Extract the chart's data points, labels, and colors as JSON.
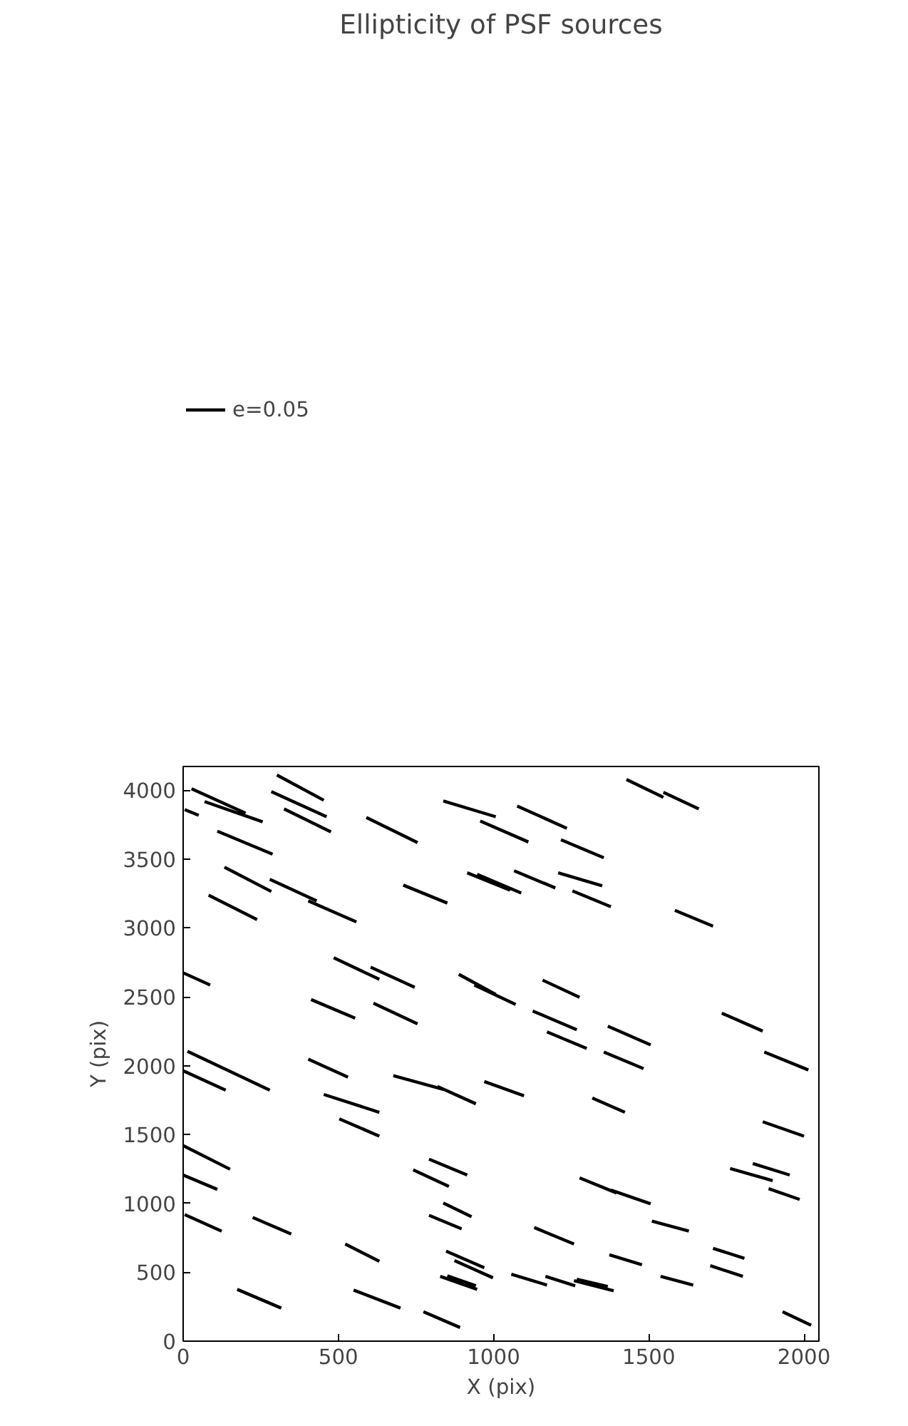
{
  "chart_data": {
    "type": "line",
    "title": "Ellipticity of PSF sources",
    "xlabel": "X (pix)",
    "ylabel": "Y (pix)",
    "xlim": [
      0,
      2048
    ],
    "ylim": [
      0,
      4172
    ],
    "xticks": [
      0,
      500,
      1000,
      1500,
      2000
    ],
    "yticks": [
      0,
      500,
      1000,
      1500,
      2000,
      2500,
      3000,
      3500,
      4000
    ],
    "grid": false,
    "legend": "top left",
    "line_style": "solid",
    "series": [
      {
        "name": "e=0.05",
        "color": "#000000",
        "x": [
          27,
          201,
          null,
          69,
          256,
          null,
          5,
          50,
          null,
          302,
          453,
          null,
          284,
          462,
          null,
          325,
          476,
          null,
          110,
          288,
          null,
          590,
          755,
          null,
          838,
          1007,
          null,
          957,
          1112,
          null,
          133,
          284,
          null,
          279,
          430,
          null,
          82,
          238,
          null,
          403,
          558,
          null,
          709,
          851,
          null,
          915,
          1053,
          null,
          947,
          1089,
          null,
          1428,
          1547,
          null,
          1547,
          1661,
          null,
          1076,
          1236,
          null,
          1217,
          1355,
          null,
          1066,
          1199,
          null,
          1208,
          1350,
          null,
          1254,
          1378,
          null,
          1584,
          1707,
          null,
          0,
          87,
          null,
          485,
          632,
          null,
          604,
          746,
          null,
          888,
          1007,
          null,
          938,
          1071,
          null,
          412,
          554,
          null,
          613,
          755,
          null,
          14,
          279,
          null,
          0,
          137,
          null,
          403,
          531,
          null,
          677,
          838,
          null,
          819,
          943,
          null,
          970,
          1098,
          null,
          453,
          632,
          null,
          503,
          632,
          null,
          1158,
          1277,
          null,
          1126,
          1268,
          null,
          1172,
          1300,
          null,
          1368,
          1506,
          null,
          1355,
          1483,
          null,
          1735,
          1867,
          null,
          1872,
          2014,
          null,
          1318,
          1423,
          null,
          1867,
          2000,
          null,
          0,
          151,
          null,
          0,
          110,
          null,
          5,
          124,
          null,
          224,
          348,
          null,
          792,
          915,
          null,
          741,
          856,
          null,
          838,
          929,
          null,
          792,
          897,
          null,
          522,
          632,
          null,
          847,
          970,
          null,
          874,
          998,
          null,
          828,
          947,
          null,
          851,
          943,
          null,
          174,
          316,
          null,
          549,
          700,
          null,
          774,
          892,
          null,
          1835,
          1954,
          null,
          1762,
          1899,
          null,
          1886,
          1986,
          null,
          1277,
          1396,
          null,
          1378,
          1506,
          null,
          1131,
          1259,
          null,
          1510,
          1629,
          null,
          1707,
          1808,
          null,
          1698,
          1803,
          null,
          1373,
          1478,
          null,
          1057,
          1172,
          null,
          1167,
          1263,
          null,
          1268,
          1368,
          null,
          1259,
          1387,
          null,
          1538,
          1643,
          null,
          1931,
          2023
        ],
        "values": [
          4010,
          3833,
          null,
          3917,
          3770,
          null,
          3859,
          3817,
          null,
          4110,
          3927,
          null,
          3990,
          3807,
          null,
          3864,
          3697,
          null,
          3702,
          3535,
          null,
          3802,
          3619,
          null,
          3922,
          3807,
          null,
          3776,
          3624,
          null,
          3441,
          3264,
          null,
          3353,
          3196,
          null,
          3238,
          3060,
          null,
          3196,
          3044,
          null,
          3311,
          3180,
          null,
          3400,
          3274,
          null,
          3389,
          3253,
          null,
          4078,
          3948,
          null,
          3984,
          3864,
          null,
          3885,
          3723,
          null,
          3640,
          3509,
          null,
          3415,
          3290,
          null,
          3400,
          3306,
          null,
          3269,
          3154,
          null,
          3128,
          3013,
          null,
          2674,
          2585,
          null,
          2783,
          2627,
          null,
          2715,
          2569,
          null,
          2663,
          2517,
          null,
          2585,
          2444,
          null,
          2480,
          2345,
          null,
          2454,
          2303,
          null,
          2104,
          1822,
          null,
          1963,
          1822,
          null,
          2047,
          1916,
          null,
          1927,
          1828,
          null,
          1849,
          1723,
          null,
          1885,
          1781,
          null,
          1791,
          1661,
          null,
          1614,
          1488,
          null,
          2621,
          2496,
          null,
          2397,
          2261,
          null,
          2245,
          2125,
          null,
          2287,
          2151,
          null,
          2099,
          1979,
          null,
          2381,
          2251,
          null,
          2099,
          1969,
          null,
          1765,
          1661,
          null,
          1593,
          1488,
          null,
          1420,
          1248,
          null,
          1206,
          1102,
          null,
          919,
          799,
          null,
          898,
          778,
          null,
          1321,
          1206,
          null,
          1243,
          1123,
          null,
          1003,
          903,
          null,
          914,
          815,
          null,
          705,
          580,
          null,
          653,
          533,
          null,
          585,
          460,
          null,
          470,
          376,
          null,
          475,
          402,
          null,
          376,
          240,
          null,
          371,
          240,
          null,
          214,
          99,
          null,
          1290,
          1206,
          null,
          1253,
          1165,
          null,
          1107,
          1029,
          null,
          1185,
          1076,
          null,
          1097,
          997,
          null,
          825,
          705,
          null,
          872,
          799,
          null,
          674,
          601,
          null,
          548,
          470,
          null,
          627,
          554,
          null,
          486,
          407,
          null,
          470,
          402,
          null,
          449,
          397,
          null,
          439,
          366,
          null,
          470,
          407,
          null,
          214,
          115
        ]
      }
    ]
  }
}
